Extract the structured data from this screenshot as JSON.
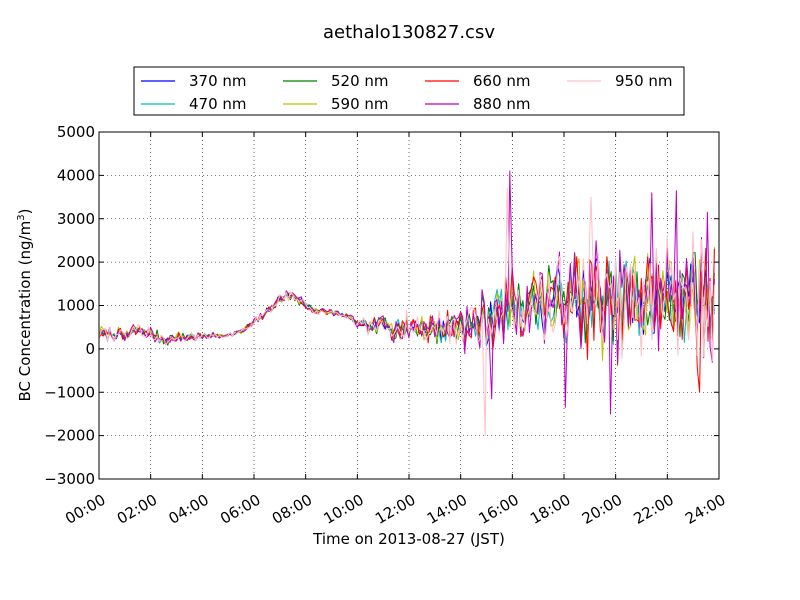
{
  "chart_data": {
    "type": "line",
    "title": "aethalo130827.csv",
    "xlabel": "Time on 2013-08-27 (JST)",
    "ylabel_main": "BC Concentration (ng/m",
    "ylabel_sup": "3",
    "ylabel_close": ")",
    "xlim": [
      0,
      24
    ],
    "ylim": [
      -3000,
      5000
    ],
    "x_ticks": [
      0,
      2,
      4,
      6,
      8,
      10,
      12,
      14,
      16,
      18,
      20,
      22,
      24
    ],
    "x_tick_labels": [
      "00:00",
      "02:00",
      "04:00",
      "06:00",
      "08:00",
      "10:00",
      "12:00",
      "14:00",
      "16:00",
      "18:00",
      "20:00",
      "22:00",
      "24:00"
    ],
    "y_ticks": [
      -3000,
      -2000,
      -1000,
      0,
      1000,
      2000,
      3000,
      4000,
      5000
    ],
    "y_tick_labels": [
      "−3000",
      "−2000",
      "−1000",
      "0",
      "1000",
      "2000",
      "3000",
      "4000",
      "5000"
    ],
    "grid": true,
    "legend_position": "top, above plot",
    "sample_interval_hours": 0.0833,
    "base_profile": [
      {
        "x": 0,
        "y": 350
      },
      {
        "x": 0.5,
        "y": 380
      },
      {
        "x": 1,
        "y": 300
      },
      {
        "x": 1.5,
        "y": 450
      },
      {
        "x": 2,
        "y": 350
      },
      {
        "x": 2.5,
        "y": 200
      },
      {
        "x": 3,
        "y": 270
      },
      {
        "x": 4,
        "y": 300
      },
      {
        "x": 5,
        "y": 320
      },
      {
        "x": 5.5,
        "y": 400
      },
      {
        "x": 6,
        "y": 600
      },
      {
        "x": 6.5,
        "y": 850
      },
      {
        "x": 7,
        "y": 1150
      },
      {
        "x": 7.5,
        "y": 1250
      },
      {
        "x": 8,
        "y": 1000
      },
      {
        "x": 8.5,
        "y": 850
      },
      {
        "x": 9,
        "y": 850
      },
      {
        "x": 9.5,
        "y": 750
      },
      {
        "x": 10,
        "y": 600
      },
      {
        "x": 10.5,
        "y": 500
      },
      {
        "x": 11,
        "y": 550
      },
      {
        "x": 12,
        "y": 500
      },
      {
        "x": 13,
        "y": 450
      },
      {
        "x": 14,
        "y": 500
      },
      {
        "x": 15,
        "y": 650
      },
      {
        "x": 16,
        "y": 1000
      },
      {
        "x": 17,
        "y": 1100
      },
      {
        "x": 18,
        "y": 1150
      },
      {
        "x": 19,
        "y": 1100
      },
      {
        "x": 20,
        "y": 1000
      },
      {
        "x": 21,
        "y": 1050
      },
      {
        "x": 22,
        "y": 1150
      },
      {
        "x": 23,
        "y": 1150
      },
      {
        "x": 24,
        "y": 1100
      }
    ],
    "noise_profile": [
      {
        "x": 0,
        "y": 150
      },
      {
        "x": 2.5,
        "y": 150
      },
      {
        "x": 5,
        "y": 50
      },
      {
        "x": 6,
        "y": 80
      },
      {
        "x": 7.5,
        "y": 150
      },
      {
        "x": 9,
        "y": 60
      },
      {
        "x": 10,
        "y": 120
      },
      {
        "x": 11,
        "y": 250
      },
      {
        "x": 12,
        "y": 350
      },
      {
        "x": 13,
        "y": 350
      },
      {
        "x": 14,
        "y": 450
      },
      {
        "x": 15,
        "y": 650
      },
      {
        "x": 16,
        "y": 750
      },
      {
        "x": 17,
        "y": 850
      },
      {
        "x": 18,
        "y": 1100
      },
      {
        "x": 19,
        "y": 1250
      },
      {
        "x": 20,
        "y": 1250
      },
      {
        "x": 21,
        "y": 1250
      },
      {
        "x": 22,
        "y": 1350
      },
      {
        "x": 24,
        "y": 1300
      }
    ],
    "notable_points": [
      {
        "series": "880 nm",
        "x": 15.9,
        "y": 4100
      },
      {
        "series": "950 nm",
        "x": 15.8,
        "y": 3700
      },
      {
        "series": "950 nm",
        "x": 14.95,
        "y": -2000
      },
      {
        "series": "880 nm",
        "x": 15.2,
        "y": -1150
      },
      {
        "series": "880 nm",
        "x": 18.05,
        "y": -1350
      },
      {
        "series": "880 nm",
        "x": 19.8,
        "y": -1500
      },
      {
        "series": "880 nm",
        "x": 21.4,
        "y": 3600
      },
      {
        "series": "880 nm",
        "x": 22.35,
        "y": 3650
      },
      {
        "series": "880 nm",
        "x": 23.55,
        "y": 3150
      },
      {
        "series": "950 nm",
        "x": 19.05,
        "y": 3500
      },
      {
        "series": "660 nm",
        "x": 23.25,
        "y": -1000
      }
    ],
    "series": [
      {
        "name": "370 nm",
        "color": "#0000ff",
        "seed": 11,
        "gain": 0.75
      },
      {
        "name": "470 nm",
        "color": "#00bfbf",
        "seed": 23,
        "gain": 0.75
      },
      {
        "name": "520 nm",
        "color": "#008000",
        "seed": 37,
        "gain": 0.85
      },
      {
        "name": "590 nm",
        "color": "#bfbf00",
        "seed": 41,
        "gain": 0.9
      },
      {
        "name": "660 nm",
        "color": "#ff0000",
        "seed": 53,
        "gain": 0.95
      },
      {
        "name": "880 nm",
        "color": "#bf00bf",
        "seed": 67,
        "gain": 1.05
      },
      {
        "name": "950 nm",
        "color": "#ffc0cb",
        "seed": 79,
        "gain": 1.0
      }
    ]
  }
}
